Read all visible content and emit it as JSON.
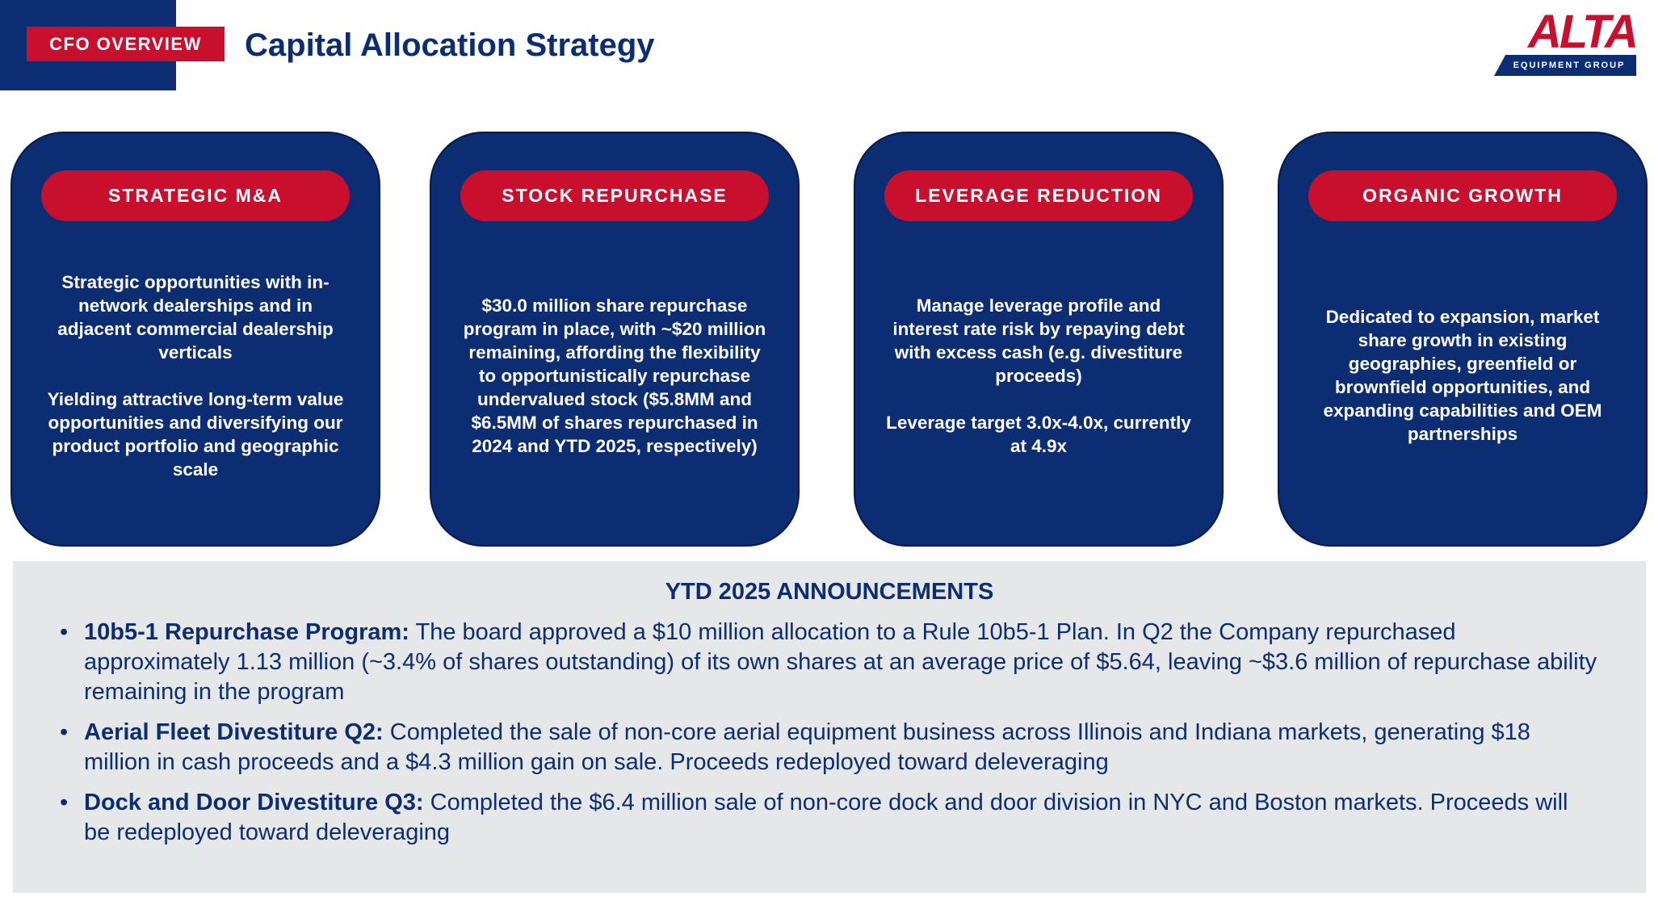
{
  "header": {
    "label": "CFO OVERVIEW",
    "title": "Capital Allocation Strategy"
  },
  "logo": {
    "name": "ALTA",
    "tagline": "EQUIPMENT GROUP"
  },
  "cards": [
    {
      "title": "STRATEGIC M&A",
      "paragraphs": [
        "Strategic opportunities with in-network dealerships and in adjacent commercial dealership verticals",
        "Yielding attractive long-term value opportunities and diversifying our product portfolio and geographic scale"
      ]
    },
    {
      "title": "STOCK REPURCHASE",
      "paragraphs": [
        "$30.0 million share repurchase program in place, with ~$20 million remaining, affording the flexibility to opportunistically repurchase undervalued stock ($5.8MM and $6.5MM of shares repurchased in 2024 and YTD 2025, respectively)"
      ]
    },
    {
      "title": "LEVERAGE REDUCTION",
      "paragraphs": [
        "Manage leverage profile and interest rate risk by repaying debt with excess cash (e.g. divestiture proceeds)",
        "Leverage target 3.0x-4.0x, currently at 4.9x"
      ]
    },
    {
      "title": "ORGANIC GROWTH",
      "paragraphs": [
        "Dedicated to expansion, market share growth in existing geographies, greenfield or brownfield opportunities, and expanding capabilities and OEM partnerships"
      ]
    }
  ],
  "announcements": {
    "heading": "YTD 2025 ANNOUNCEMENTS",
    "items": [
      {
        "lead": "10b5-1 Repurchase Program:",
        "text": "The board approved a $10 million allocation to a Rule 10b5-1 Plan. In Q2 the Company repurchased approximately 1.13 million (~3.4% of shares outstanding) of its own shares at an average price of $5.64, leaving ~$3.6 million of repurchase ability remaining in the program"
      },
      {
        "lead": "Aerial Fleet Divestiture Q2:",
        "text": "Completed the sale of non-core aerial equipment business across Illinois and Indiana markets, generating $18 million in cash proceeds and a $4.3 million gain on sale. Proceeds redeployed toward deleveraging"
      },
      {
        "lead": "Dock and Door Divestiture Q3:",
        "text": "Completed the $6.4 million sale of non-core dock and door division in NYC and Boston markets. Proceeds will be redeployed toward deleveraging"
      }
    ]
  }
}
